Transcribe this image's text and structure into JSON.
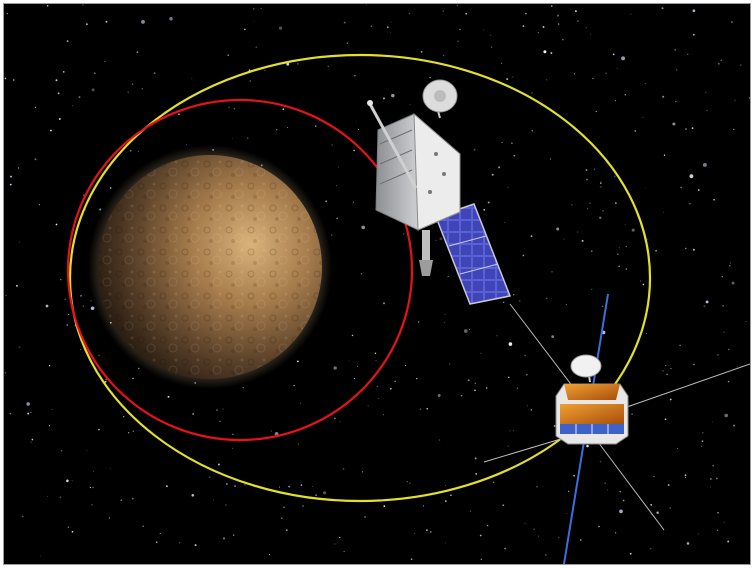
{
  "scene": {
    "kind": "illustration",
    "subject_icons": [
      "planet-mercury",
      "orbiter-spacecraft",
      "magnetospheric-orbiter-spacecraft",
      "starfield"
    ]
  },
  "colors": {
    "space": "#000000",
    "inner_orbit": "#e3121b",
    "outer_orbit": "#e2e02a",
    "planet_light": "#c9a06c",
    "planet_dark": "#2a1d12",
    "solar_panel": "#3f45b8",
    "spacecraft_body": "#d9d9d9",
    "probe_insulation": "#d47a19",
    "antenna_blue": "#3b6fe0"
  }
}
